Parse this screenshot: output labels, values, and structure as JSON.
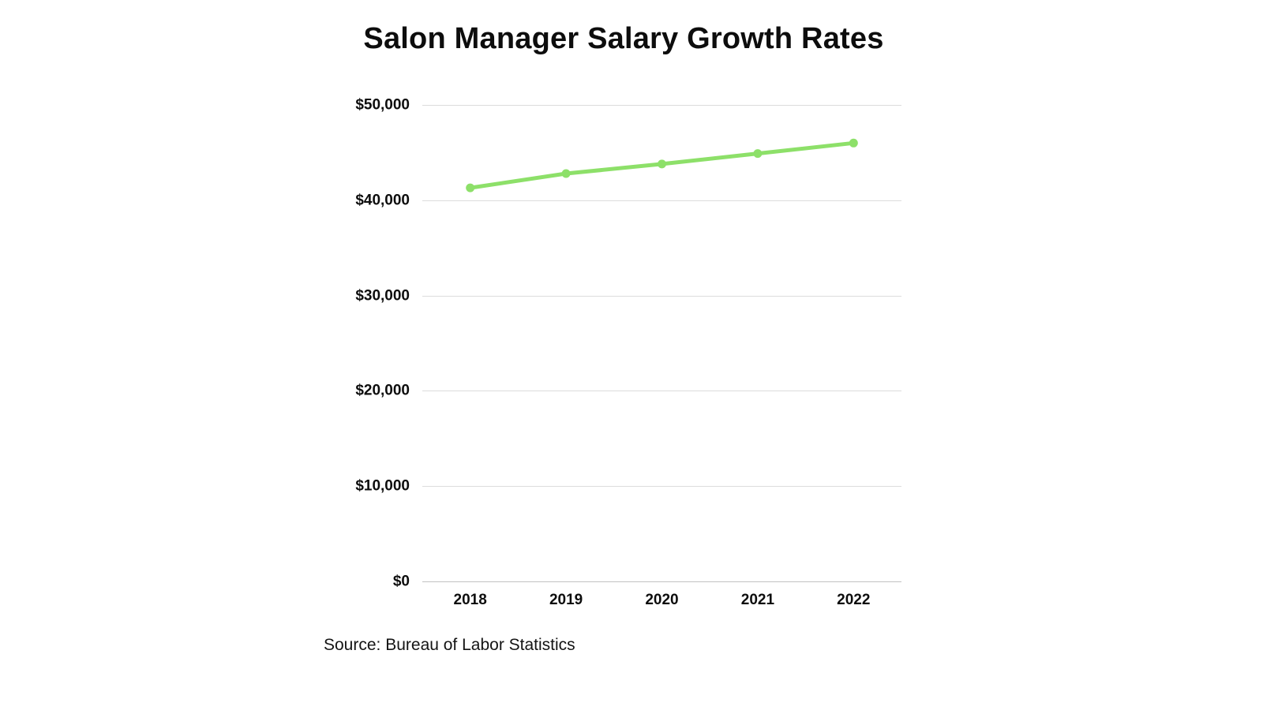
{
  "chart_data": {
    "type": "line",
    "title": "Salon Manager Salary Growth Rates",
    "categories": [
      "2018",
      "2019",
      "2020",
      "2021",
      "2022"
    ],
    "series": [
      {
        "name": "Salon Manager Salary",
        "values": [
          41300,
          42800,
          43800,
          44900,
          46000
        ]
      }
    ],
    "xlabel": "",
    "ylabel": "",
    "ylim": [
      0,
      50000
    ],
    "grid": true,
    "legend_position": "none",
    "y_ticks": [
      {
        "value": 50000,
        "label": "$50,000"
      },
      {
        "value": 40000,
        "label": "$40,000"
      },
      {
        "value": 30000,
        "label": "$30,000"
      },
      {
        "value": 20000,
        "label": "$20,000"
      },
      {
        "value": 10000,
        "label": "$10,000"
      },
      {
        "value": 0,
        "label": "$0"
      }
    ]
  },
  "source_note": "Source: Bureau of Labor Statistics",
  "colors": {
    "background": "#ffffff",
    "text": "#0d0d0d",
    "gridline": "#dcdcdc",
    "axis_line": "#c2c2c2",
    "line_green": "#8DE069"
  }
}
